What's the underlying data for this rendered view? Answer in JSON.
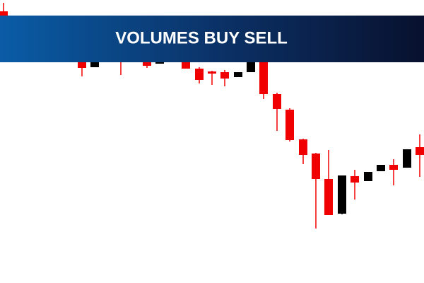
{
  "banner": {
    "title": "VOLUMES BUY SELL"
  }
}
